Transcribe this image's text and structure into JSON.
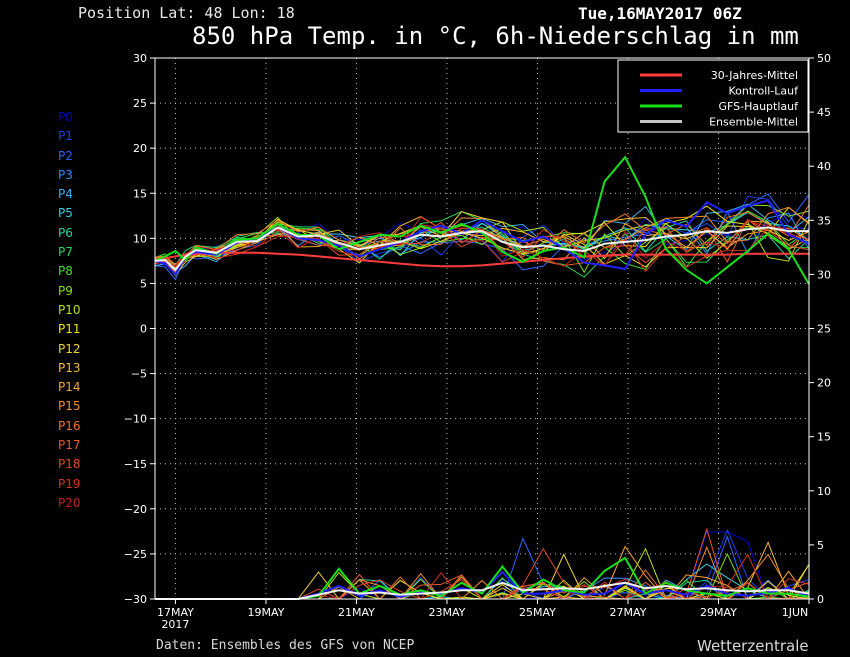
{
  "header": {
    "position_text": "Position   Lat: 48 Lon: 18",
    "datetime": "Tue,16MAY2017 06Z",
    "title": "850 hPa Temp. in °C, 6h-Niederschlag in mm"
  },
  "footer": {
    "source": "Daten: Ensembles des GFS von NCEP",
    "brand": "Wetterzentrale"
  },
  "members": [
    {
      "label": "P0",
      "color": "#0000cc"
    },
    {
      "label": "P1",
      "color": "#1a3cf0"
    },
    {
      "label": "P2",
      "color": "#2a64ff"
    },
    {
      "label": "P3",
      "color": "#2f8cff"
    },
    {
      "label": "P4",
      "color": "#38b0f4"
    },
    {
      "label": "P5",
      "color": "#2fd2e4"
    },
    {
      "label": "P6",
      "color": "#20d8a0"
    },
    {
      "label": "P7",
      "color": "#22d85a"
    },
    {
      "label": "P8",
      "color": "#3ae02c"
    },
    {
      "label": "P9",
      "color": "#7ee014"
    },
    {
      "label": "P10",
      "color": "#b6e60c"
    },
    {
      "label": "P11",
      "color": "#e8e810"
    },
    {
      "label": "P12",
      "color": "#f2d42a"
    },
    {
      "label": "P13",
      "color": "#f6bc2c"
    },
    {
      "label": "P14",
      "color": "#f6a42c"
    },
    {
      "label": "P15",
      "color": "#f48c2a"
    },
    {
      "label": "P16",
      "color": "#f07028"
    },
    {
      "label": "P17",
      "color": "#e85a26"
    },
    {
      "label": "P18",
      "color": "#e04424"
    },
    {
      "label": "P19",
      "color": "#d43020"
    },
    {
      "label": "P20",
      "color": "#c41e1e"
    }
  ],
  "chart_data": {
    "type": "line",
    "y_left": {
      "min": -30,
      "max": 30,
      "step": 5,
      "unit": "°C"
    },
    "y_right": {
      "min": 0,
      "max": 50,
      "step": 5,
      "unit": "mm"
    },
    "x_ticks": [
      "17MAY",
      "19MAY",
      "21MAY",
      "23MAY",
      "25MAY",
      "27MAY",
      "29MAY",
      "1JUN"
    ],
    "x_tick_sub": "2017",
    "grid": true,
    "legend": {
      "placement": "top-right",
      "entries": [
        {
          "label": "30-Jahres-Mittel",
          "color": "#ff3c3c"
        },
        {
          "label": "Kontroll-Lauf",
          "color": "#2020ff"
        },
        {
          "label": "GFS-Hauptlauf",
          "color": "#18e018"
        },
        {
          "label": "Ensemble-Mittel",
          "color": "#c8c8c8"
        }
      ]
    },
    "x_days": [
      0,
      0.25,
      0.5,
      0.75,
      1,
      1.5,
      2,
      2.5,
      3,
      3.5,
      4,
      4.5,
      5,
      5.5,
      6,
      6.5,
      7,
      7.5,
      8,
      8.5,
      9,
      9.5,
      10,
      10.5,
      11,
      11.5,
      12,
      12.5,
      13,
      13.5,
      14,
      14.5,
      15,
      15.5,
      16
    ],
    "temperature_series": [
      {
        "name": "30-Jahres-Mittel",
        "color": "#ff3c3c",
        "values": [
          7.5,
          7.8,
          8.0,
          8.2,
          8.3,
          8.4,
          8.4,
          8.4,
          8.3,
          8.2,
          8.0,
          7.8,
          7.6,
          7.4,
          7.2,
          7.0,
          6.9,
          6.9,
          7.0,
          7.2,
          7.4,
          7.6,
          7.8,
          8.0,
          8.1,
          8.2,
          8.2,
          8.2,
          8.2,
          8.2,
          8.2,
          8.3,
          8.3,
          8.3,
          8.3
        ]
      },
      {
        "name": "Kontroll-Lauf",
        "color": "#2020ff",
        "values": [
          7.5,
          7.2,
          6.0,
          8.0,
          8.5,
          8.2,
          9.5,
          10.0,
          11.2,
          10.0,
          9.8,
          9.2,
          8.0,
          8.8,
          9.6,
          10.8,
          11.4,
          10.5,
          12.0,
          10.8,
          9.6,
          10.2,
          8.9,
          7.3,
          7.0,
          6.6,
          10.4,
          12.0,
          11.3,
          14.0,
          12.8,
          13.6,
          14.2,
          10.4,
          9.4
        ]
      },
      {
        "name": "GFS-Hauptlauf",
        "color": "#18e018",
        "values": [
          7.5,
          8.0,
          8.6,
          7.6,
          9.0,
          8.3,
          9.8,
          10.0,
          11.6,
          10.4,
          10.3,
          8.8,
          9.6,
          10.4,
          10.2,
          11.4,
          10.6,
          11.6,
          10.6,
          8.5,
          7.4,
          8.6,
          9.0,
          7.9,
          16.3,
          19.0,
          14.6,
          8.8,
          6.5,
          5.0,
          6.8,
          8.6,
          10.5,
          8.8,
          4.9
        ]
      },
      {
        "name": "Ensemble-Mittel",
        "color": "#f2f2f2",
        "values": [
          7.5,
          7.6,
          6.5,
          8.0,
          8.7,
          8.4,
          9.6,
          9.7,
          11.2,
          10.2,
          10.3,
          9.5,
          8.8,
          9.2,
          9.6,
          10.4,
          10.2,
          10.6,
          10.8,
          9.6,
          9.0,
          9.2,
          8.8,
          8.6,
          9.4,
          9.6,
          9.8,
          10.2,
          10.4,
          10.8,
          10.6,
          11.0,
          11.2,
          10.8,
          10.8
        ]
      }
    ],
    "precip_series": [
      {
        "name": "Kontroll-Lauf",
        "color": "#2020ff",
        "values": [
          0,
          0,
          0,
          0,
          0,
          0,
          0,
          0,
          0,
          0,
          0.5,
          1.2,
          0.3,
          0.8,
          0.2,
          0.6,
          0.5,
          1.0,
          0.6,
          2.5,
          0.5,
          0.5,
          0.8,
          0.4,
          0.5,
          1.5,
          0.5,
          0.8,
          0.4,
          1.2,
          0.5,
          0.3,
          0.6,
          1.0,
          0.2
        ]
      },
      {
        "name": "GFS-Hauptlauf",
        "color": "#18e018",
        "values": [
          0,
          0,
          0,
          0,
          0,
          0,
          0,
          0,
          0,
          0,
          0.3,
          2.8,
          0.5,
          1.2,
          0.4,
          0.8,
          0.3,
          1.5,
          0.5,
          3.0,
          0.6,
          1.8,
          0.8,
          0.6,
          2.6,
          3.8,
          0.5,
          1.5,
          0.8,
          0.5,
          0.3,
          1.0,
          0.5,
          0.5,
          0.2
        ]
      },
      {
        "name": "Ensemble-Mittel",
        "color": "#f2f2f2",
        "values": [
          0,
          0,
          0,
          0,
          0,
          0,
          0,
          0,
          0,
          0,
          0.4,
          0.8,
          0.5,
          0.6,
          0.4,
          0.5,
          0.6,
          0.8,
          0.8,
          1.5,
          0.8,
          0.9,
          1.0,
          0.9,
          1.2,
          1.5,
          1.0,
          1.2,
          0.9,
          1.0,
          0.8,
          0.7,
          0.8,
          0.8,
          0.5
        ]
      }
    ]
  }
}
